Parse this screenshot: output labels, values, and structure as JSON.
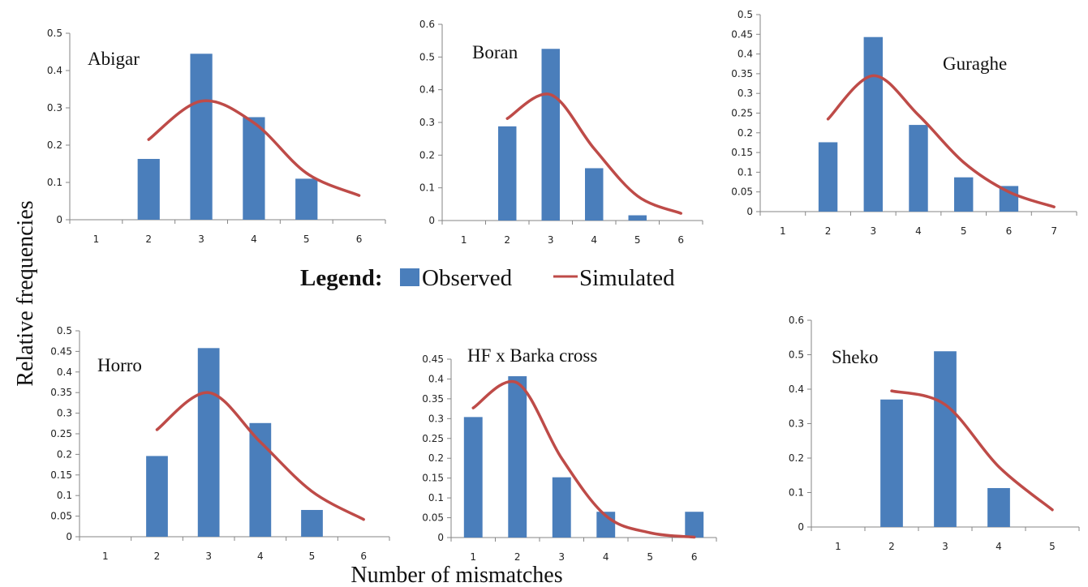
{
  "colors": {
    "observed": "#4a7ebb",
    "simulated": "#be4b48",
    "axis": "#868686"
  },
  "ylabel": "Relative frequencies",
  "xlabel": "Number of mismatches",
  "legend": {
    "heading": "Legend:",
    "observed": "Observed",
    "simulated": "Simulated"
  },
  "chart_data": [
    {
      "type": "bar",
      "title": "Abigar",
      "categories": [
        "1",
        "2",
        "3",
        "4",
        "5",
        "6"
      ],
      "ylim": [
        0,
        0.5
      ],
      "yticks": [
        "0",
        "0.1",
        "0.2",
        "0.3",
        "0.4",
        "0.5"
      ],
      "series": [
        {
          "name": "Observed",
          "type": "bar",
          "values": [
            0,
            0.163,
            0.445,
            0.275,
            0.11,
            0
          ]
        },
        {
          "name": "Simulated",
          "type": "line",
          "values": [
            null,
            0.215,
            0.318,
            0.26,
            0.125,
            0.065
          ]
        }
      ]
    },
    {
      "type": "bar",
      "title": "Boran",
      "categories": [
        "1",
        "2",
        "3",
        "4",
        "5",
        "6"
      ],
      "ylim": [
        0,
        0.6
      ],
      "yticks": [
        "0",
        "0.1",
        "0.2",
        "0.3",
        "0.4",
        "0.5",
        "0.6"
      ],
      "series": [
        {
          "name": "Observed",
          "type": "bar",
          "values": [
            0,
            0.288,
            0.525,
            0.16,
            0.016,
            0
          ]
        },
        {
          "name": "Simulated",
          "type": "line",
          "values": [
            null,
            0.312,
            0.385,
            0.22,
            0.075,
            0.022
          ]
        }
      ]
    },
    {
      "type": "bar",
      "title": "Guraghe",
      "categories": [
        "1",
        "2",
        "3",
        "4",
        "5",
        "6",
        "7"
      ],
      "ylim": [
        0,
        0.5
      ],
      "yticks": [
        "0",
        "0.05",
        "0.1",
        "0.15",
        "0.2",
        "0.25",
        "0.3",
        "0.35",
        "0.4",
        "0.45",
        "0.5"
      ],
      "series": [
        {
          "name": "Observed",
          "type": "bar",
          "values": [
            0,
            0.176,
            0.443,
            0.22,
            0.087,
            0.065,
            0
          ]
        },
        {
          "name": "Simulated",
          "type": "line",
          "values": [
            null,
            0.235,
            0.345,
            0.245,
            0.125,
            0.05,
            0.012
          ]
        }
      ]
    },
    {
      "type": "bar",
      "title": "Horro",
      "categories": [
        "1",
        "2",
        "3",
        "4",
        "5",
        "6"
      ],
      "ylim": [
        0,
        0.5
      ],
      "yticks": [
        "0",
        "0.05",
        "0.1",
        "0.15",
        "0.2",
        "0.25",
        "0.3",
        "0.35",
        "0.4",
        "0.45",
        "0.5"
      ],
      "series": [
        {
          "name": "Observed",
          "type": "bar",
          "values": [
            0,
            0.196,
            0.458,
            0.276,
            0.065,
            0
          ]
        },
        {
          "name": "Simulated",
          "type": "line",
          "values": [
            null,
            0.26,
            0.35,
            0.23,
            0.11,
            0.042
          ]
        }
      ]
    },
    {
      "type": "bar",
      "title": "HF x Barka cross",
      "categories": [
        "1",
        "2",
        "3",
        "4",
        "5",
        "6"
      ],
      "ylim": [
        0,
        0.45
      ],
      "yticks": [
        "0",
        "0.05",
        "0.1",
        "0.15",
        "0.2",
        "0.25",
        "0.3",
        "0.35",
        "0.4",
        "0.45"
      ],
      "series": [
        {
          "name": "Observed",
          "type": "bar",
          "values": [
            0.304,
            0.407,
            0.152,
            0.065,
            0,
            0.065
          ]
        },
        {
          "name": "Simulated",
          "type": "line",
          "values": [
            0.327,
            0.39,
            0.2,
            0.055,
            0.012,
            0.001
          ]
        }
      ]
    },
    {
      "type": "bar",
      "title": "Sheko",
      "categories": [
        "1",
        "2",
        "3",
        "4",
        "5"
      ],
      "ylim": [
        0,
        0.6
      ],
      "yticks": [
        "0",
        "0.1",
        "0.2",
        "0.3",
        "0.4",
        "0.5",
        "0.6"
      ],
      "series": [
        {
          "name": "Observed",
          "type": "bar",
          "values": [
            0,
            0.37,
            0.51,
            0.113,
            0
          ]
        },
        {
          "name": "Simulated",
          "type": "line",
          "values": [
            null,
            0.395,
            0.355,
            0.175,
            0.05
          ]
        }
      ]
    }
  ]
}
